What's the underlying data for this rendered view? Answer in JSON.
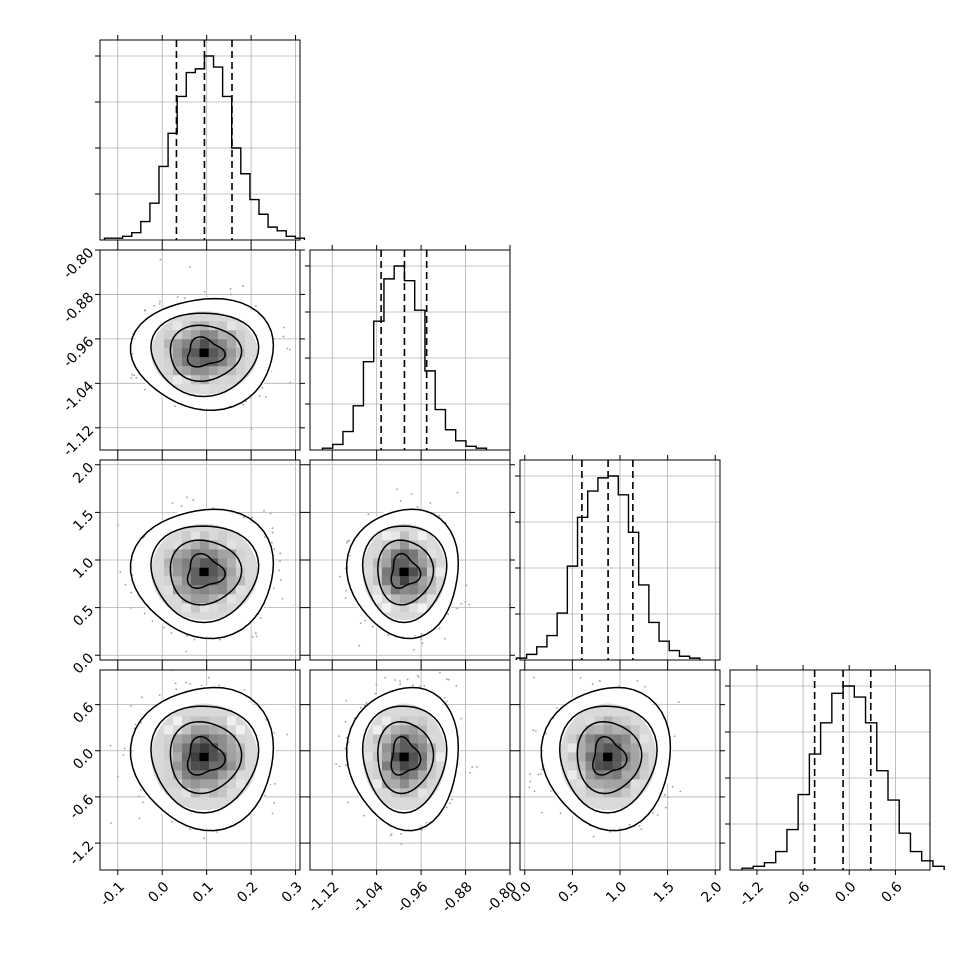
{
  "chart_data": {
    "type": "corner",
    "parameters": [
      {
        "name": "",
        "median": 0.095,
        "quantiles": [
          0.032,
          0.095,
          0.157
        ],
        "range": [
          -0.14,
          0.31
        ],
        "ticks": [
          "-0.1",
          "0.0",
          "0.1",
          "0.2",
          "0.3"
        ],
        "tick_values": [
          -0.1,
          0.0,
          0.1,
          0.2,
          0.3
        ]
      },
      {
        "name": "",
        "median": -0.99,
        "quantiles": [
          -1.032,
          -0.99,
          -0.95
        ],
        "range": [
          -1.16,
          -0.8
        ],
        "ticks": [
          "-1.12",
          "-1.04",
          "-0.96",
          "-0.88",
          "-0.80"
        ],
        "tick_values": [
          -1.12,
          -1.04,
          -0.96,
          -0.88,
          -0.8
        ]
      },
      {
        "name": "",
        "median": 0.875,
        "quantiles": [
          0.6,
          0.875,
          1.135
        ],
        "range": [
          -0.05,
          2.05
        ],
        "ticks": [
          "0.0",
          "0.5",
          "1.0",
          "1.5",
          "2.0"
        ],
        "tick_values": [
          0.0,
          0.5,
          1.0,
          1.5,
          2.0
        ]
      },
      {
        "name": "",
        "median": -0.08,
        "quantiles": [
          -0.45,
          -0.08,
          0.28
        ],
        "range": [
          -1.55,
          1.05
        ],
        "ticks": [
          "-1.2",
          "-0.6",
          "0.0",
          "0.6"
        ],
        "tick_values": [
          -1.2,
          -0.6,
          0.0,
          0.6
        ]
      }
    ],
    "histograms": [
      [
        1,
        1,
        2,
        4,
        10,
        20,
        40,
        58,
        78,
        91,
        93,
        100,
        94,
        78,
        50,
        36,
        22,
        14,
        7,
        5,
        2,
        1
      ],
      [
        1,
        3,
        10,
        24,
        48,
        70,
        93,
        100,
        92,
        76,
        43,
        22,
        11,
        5,
        2,
        1
      ],
      [
        1,
        3,
        7,
        13,
        25,
        50,
        76,
        90,
        97,
        98,
        88,
        68,
        40,
        20,
        10,
        5,
        2,
        1
      ],
      [
        1,
        2,
        4,
        10,
        22,
        41,
        63,
        80,
        96,
        100,
        94,
        80,
        54,
        38,
        20,
        10,
        5,
        2
      ]
    ],
    "pairs": [
      {
        "x": 0,
        "y": 1,
        "center": [
          0.095,
          -0.985
        ],
        "spread": [
          0.064,
          0.04
        ]
      },
      {
        "x": 0,
        "y": 2,
        "center": [
          0.095,
          0.875
        ],
        "spread": [
          0.064,
          0.27
        ]
      },
      {
        "x": 1,
        "y": 2,
        "center": [
          -0.99,
          0.875
        ],
        "spread": [
          0.04,
          0.27
        ]
      },
      {
        "x": 0,
        "y": 3,
        "center": [
          0.095,
          -0.08
        ],
        "spread": [
          0.064,
          0.37
        ]
      },
      {
        "x": 1,
        "y": 3,
        "center": [
          -0.99,
          -0.08
        ],
        "spread": [
          0.04,
          0.37
        ]
      },
      {
        "x": 2,
        "y": 3,
        "center": [
          0.875,
          -0.08
        ],
        "spread": [
          0.27,
          0.37
        ]
      }
    ],
    "contour_levels_sigma": [
      0.5,
      1.0,
      1.5,
      2.0
    ],
    "grid": true,
    "colors": {
      "frame": "#000000",
      "grid": "#b0b0b0",
      "points": "#9e9e9e",
      "density_dark": "#000000"
    }
  }
}
